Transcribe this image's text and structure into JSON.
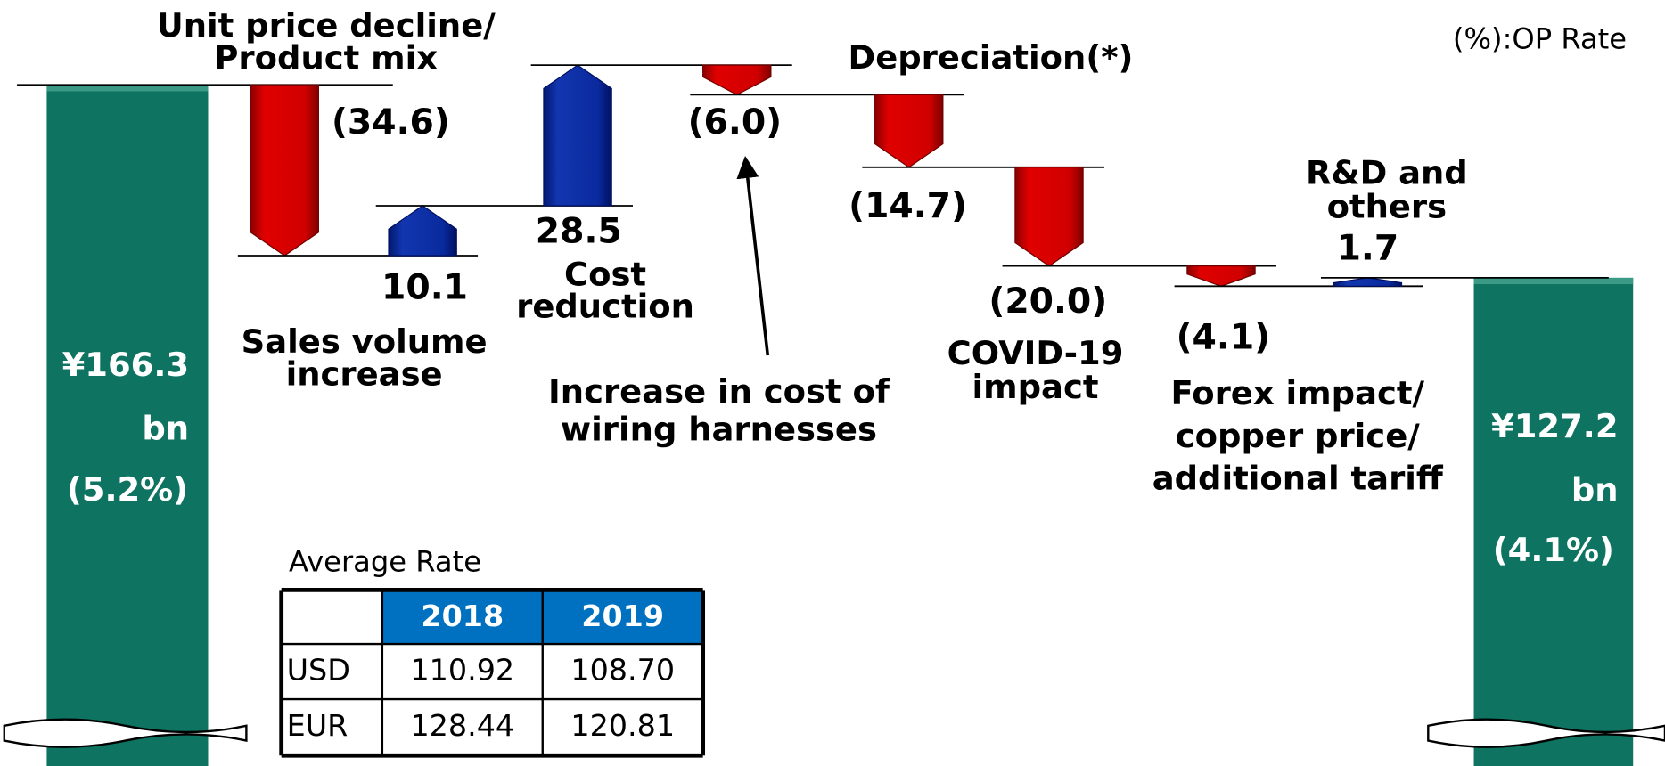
{
  "chart_data": {
    "type": "waterfall",
    "note": "(%):OP Rate",
    "start": {
      "value": 166.3,
      "label": "¥166.3\nbn",
      "rate": 5.2,
      "rate_label": "(5.2%)"
    },
    "end": {
      "value": 127.2,
      "label": "¥127.2\nbn",
      "rate": 4.1,
      "rate_label": "(4.1%)"
    },
    "categories": [
      "Unit price decline/\nProduct mix",
      "Sales volume\nincrease",
      "Cost\nreduction",
      "Increase in cost of\nwiring harnesses",
      "Depreciation(*)",
      "COVID-19\nimpact",
      "Forex impact/\ncopper price/\nadditional tariff",
      "R&D and\nothers"
    ],
    "values": [
      -34.6,
      10.1,
      28.5,
      -6.0,
      -14.7,
      -20.0,
      -4.1,
      1.7
    ],
    "value_labels": [
      "(34.6)",
      "10.1",
      "28.5",
      "(6.0)",
      "(14.7)",
      "(20.0)",
      "(4.1)",
      "1.7"
    ],
    "colors": {
      "increase": "#0a2a9e",
      "decrease": "#d40000",
      "total": "#0e7461"
    }
  },
  "table": {
    "title": "Average Rate",
    "header": [
      "2018",
      "2019"
    ],
    "rows": [
      [
        "USD",
        "110.92",
        "108.70"
      ],
      [
        "EUR",
        "128.44",
        "120.81"
      ]
    ]
  }
}
